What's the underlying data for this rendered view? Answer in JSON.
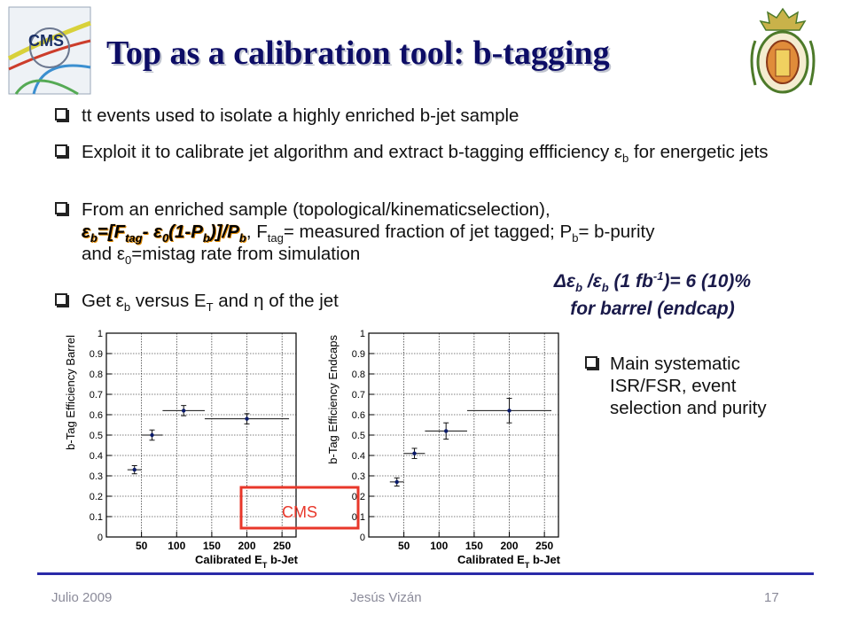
{
  "slide": {
    "title": "Top as a calibration tool: b-tagging",
    "bullets": {
      "b1": "tt events used to isolate a highly enriched b-jet sample",
      "b2_pre": "Exploit it to calibrate jet algorithm and extract b-tagging effficiency ε",
      "b2_sub": "b",
      "b2_post": " for energetic jets",
      "b3_line1": "From an enriched sample (topological/kinematicselection),",
      "formula": {
        "eps": "ε",
        "eps_sub": "b",
        "eq": "=[F",
        "ftag_sub": "tag",
        "minus": "- ε",
        "eps0_sub": "0",
        "paren": "(1-P",
        "pb_sub": "b",
        "close": ")]/P",
        "pb2_sub": "b"
      },
      "b3_mid1": ", F",
      "b3_mid1_sub": "tag",
      "b3_mid2": "= measured fraction of jet tagged; P",
      "b3_mid2_sub": "b",
      "b3_mid3": "= b-purity",
      "b3_line3_pre": "and ε",
      "b3_line3_sub": "0",
      "b3_line3_post": "=mistag rate from simulation",
      "b4_pre": "Get ε",
      "b4_sub": "b",
      "b4_mid": " versus E",
      "b4_sub2": "T",
      "b4_post": " and η of the jet"
    },
    "delta_eff": {
      "pre": "Δε",
      "sub1": "b",
      "mid": " /ε",
      "sub2": "b",
      "paren": " (1 fb",
      "sup": "-1",
      "post": ")= 6 (10)%",
      "line2": "for barrel (endcap)"
    },
    "systematics": "Main systematic ISR/FSR, event selection and purity",
    "cms_label": "CMS",
    "footer": {
      "date": "Julio 2009",
      "author": "Jesús Vizán",
      "page": "17"
    }
  },
  "colors": {
    "title": "#0d0d66",
    "footer_rule": "#2a2aa8",
    "cms_box": "#e8372a",
    "marker": "#0a1a6a"
  },
  "chart_data": [
    {
      "type": "scatter",
      "title": "",
      "xlabel": "Calibrated E_T b-Jet",
      "ylabel": "b-Tag Efficiency Barrel",
      "xlim": [
        0,
        270
      ],
      "ylim": [
        0,
        1
      ],
      "x_ticks": [
        "50",
        "100",
        "150",
        "200",
        "250"
      ],
      "y_ticks": [
        "0",
        "0.1",
        "0.2",
        "0.3",
        "0.4",
        "0.5",
        "0.6",
        "0.7",
        "0.8",
        "0.9",
        "1"
      ],
      "grid": true,
      "points": [
        {
          "x": 40,
          "y": 0.33,
          "xerr": 10,
          "yerr": 0.02
        },
        {
          "x": 65,
          "y": 0.5,
          "xerr": 15,
          "yerr": 0.025
        },
        {
          "x": 110,
          "y": 0.62,
          "xerr": 30,
          "yerr": 0.025
        },
        {
          "x": 200,
          "y": 0.58,
          "xerr": 60,
          "yerr": 0.025
        }
      ]
    },
    {
      "type": "scatter",
      "title": "",
      "xlabel": "Calibrated E_T b-Jet",
      "ylabel": "b-Tag Efficiency Endcaps",
      "xlim": [
        0,
        270
      ],
      "ylim": [
        0,
        1
      ],
      "x_ticks": [
        "50",
        "100",
        "150",
        "200",
        "250"
      ],
      "y_ticks": [
        "0",
        "0.1",
        "0.2",
        "0.3",
        "0.4",
        "0.5",
        "0.6",
        "0.7",
        "0.8",
        "0.9",
        "1"
      ],
      "grid": true,
      "points": [
        {
          "x": 40,
          "y": 0.27,
          "xerr": 10,
          "yerr": 0.02
        },
        {
          "x": 65,
          "y": 0.41,
          "xerr": 15,
          "yerr": 0.025
        },
        {
          "x": 110,
          "y": 0.52,
          "xerr": 30,
          "yerr": 0.04
        },
        {
          "x": 200,
          "y": 0.62,
          "xerr": 60,
          "yerr": 0.06
        }
      ]
    }
  ]
}
